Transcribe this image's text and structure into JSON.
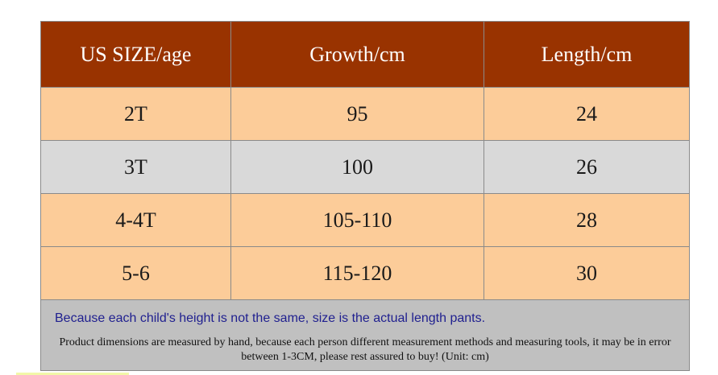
{
  "table": {
    "headers": [
      "US SIZE/age",
      "Growth/cm",
      "Length/cm"
    ],
    "rows": [
      {
        "size": "2T",
        "growth": "95",
        "length": "24"
      },
      {
        "size": "3T",
        "growth": "100",
        "length": "26"
      },
      {
        "size": "4-4T",
        "growth": "105-110",
        "length": "28"
      },
      {
        "size": "5-6",
        "growth": "115-120",
        "length": "30"
      }
    ]
  },
  "notes": {
    "main": "Because each child's height is not the same, size is the actual length pants.",
    "sub": "Product dimensions are measured by hand, because each person different measurement methods and measuring tools, it may be in error between 1-3CM, please rest assured to buy! (Unit: cm)"
  },
  "colors": {
    "header_bg": "#993300",
    "peach_row": "#fccc99",
    "gray_row": "#d9d9d9",
    "notes_bg": "#c0c0c0",
    "notes_main_text": "#1f1f8f"
  }
}
